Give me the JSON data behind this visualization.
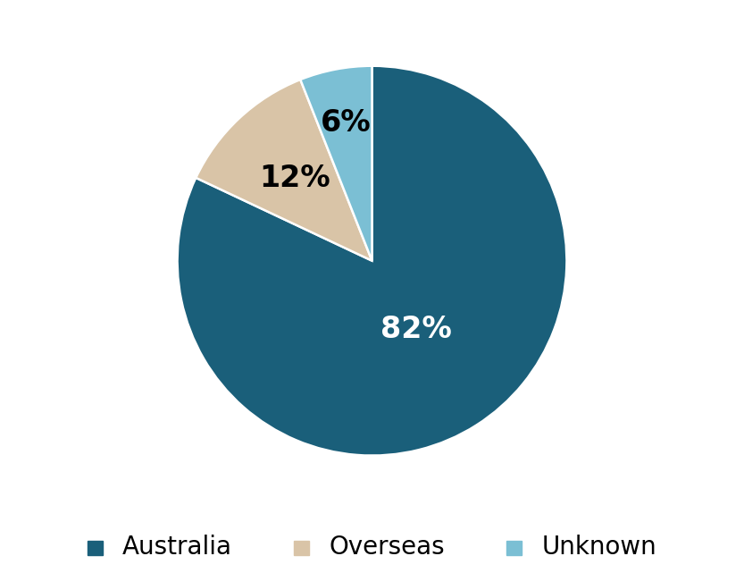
{
  "labels": [
    "Australia",
    "Overseas",
    "Unknown"
  ],
  "values": [
    82,
    12,
    6
  ],
  "colors": [
    "#1a5f7a",
    "#d9c4a7",
    "#7bbfd4"
  ],
  "pct_labels": [
    "82%",
    "12%",
    "6%"
  ],
  "pct_colors": [
    "white",
    "black",
    "black"
  ],
  "legend_labels": [
    "Australia",
    "Overseas",
    "Unknown"
  ],
  "background_color": "#ffffff",
  "startangle": 90,
  "label_fontsize": 24,
  "legend_fontsize": 20,
  "pct_radii": [
    0.42,
    0.58,
    0.72
  ]
}
